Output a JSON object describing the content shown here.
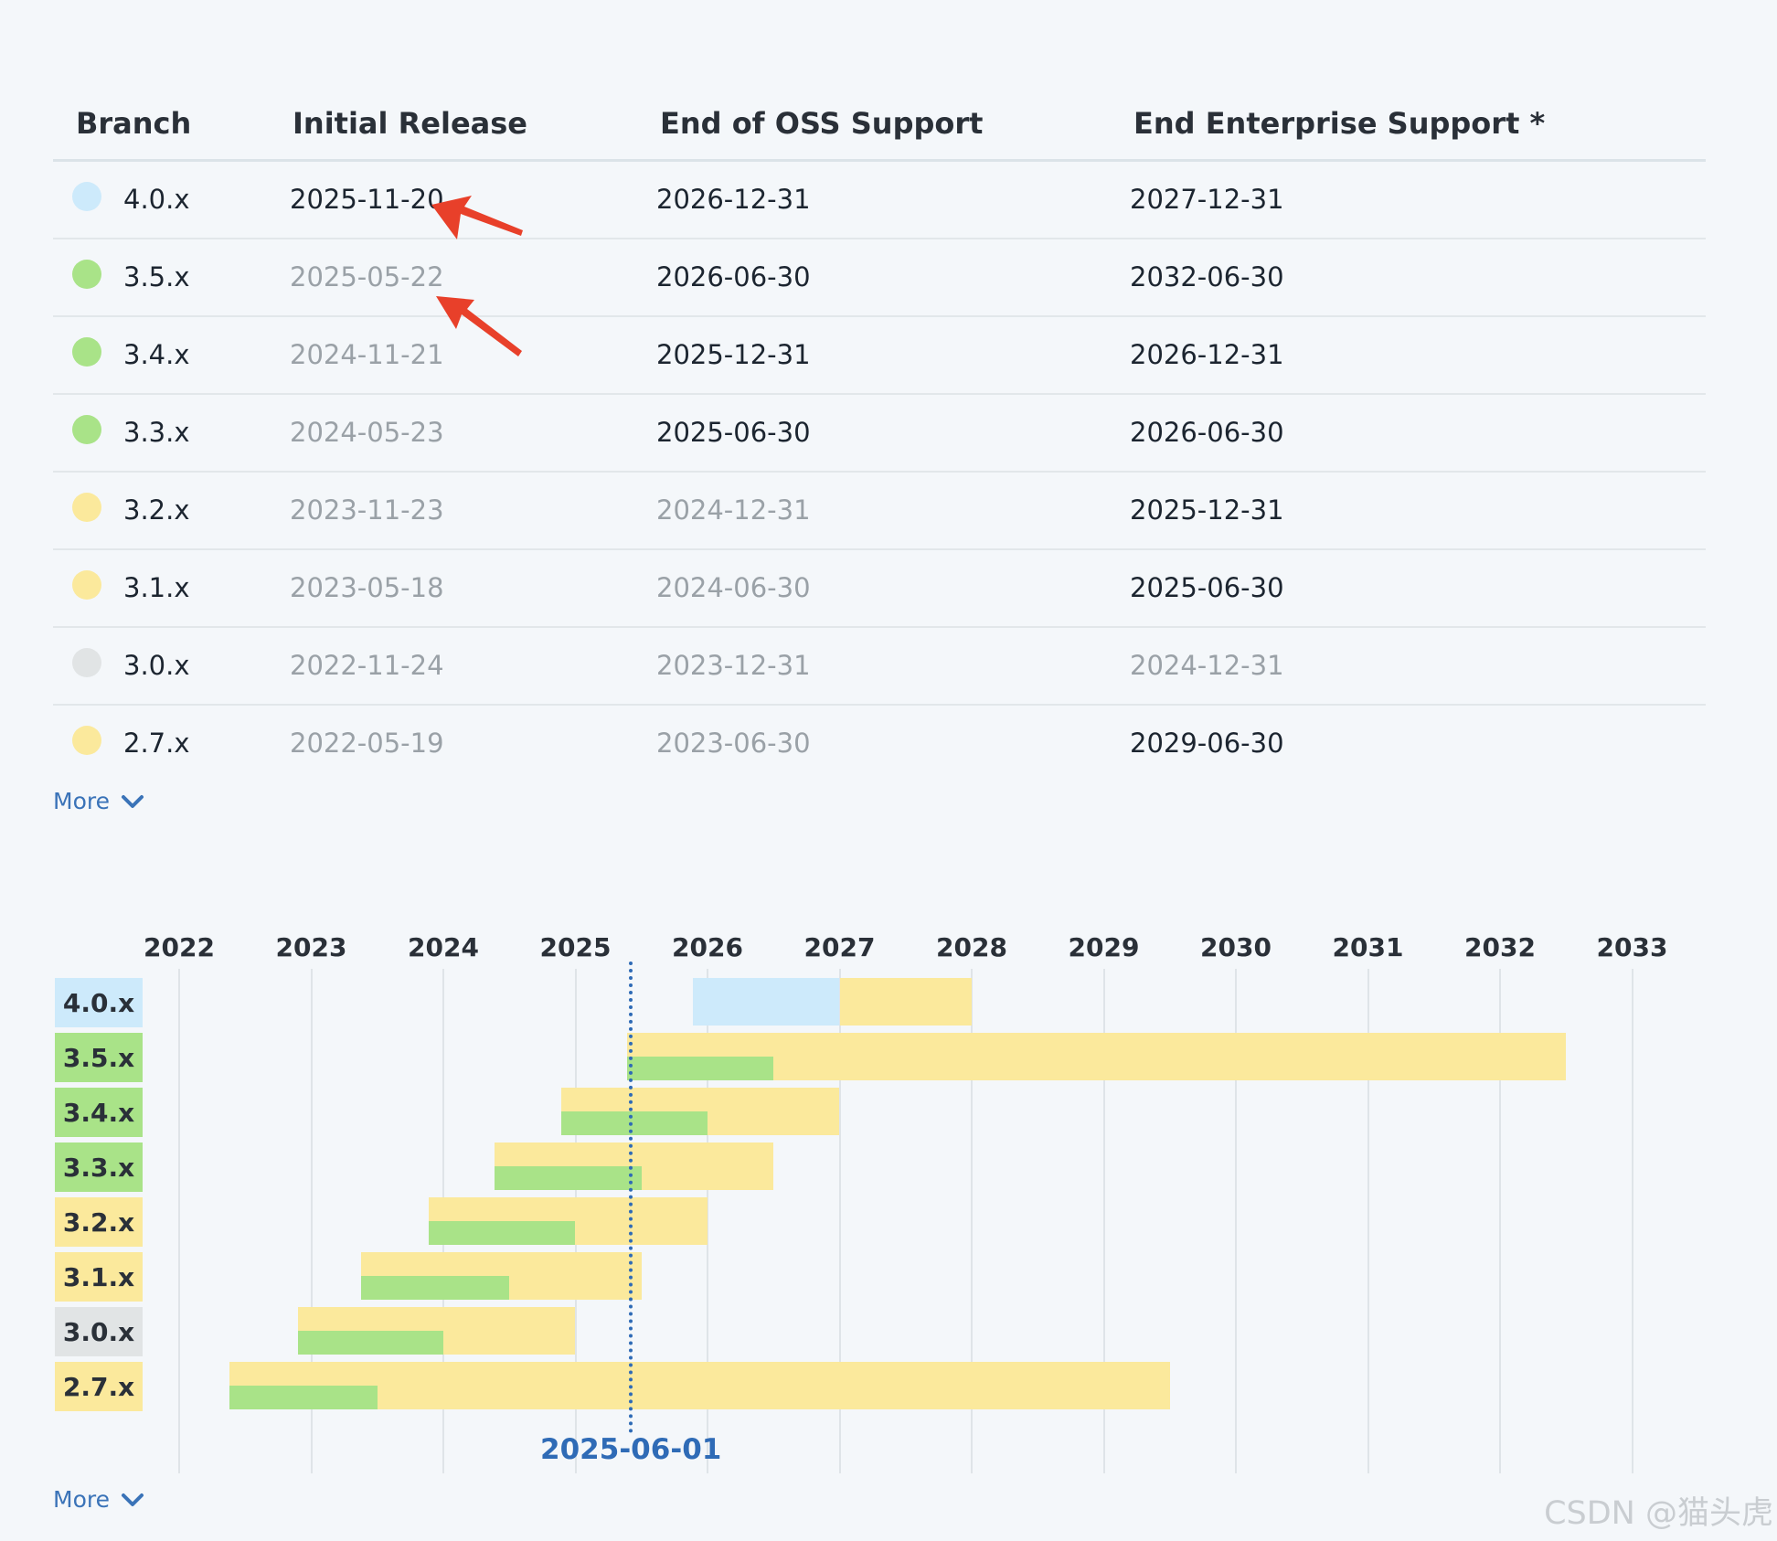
{
  "colors": {
    "blue": "#cdeafb",
    "green": "#a9e388",
    "yellow": "#fbe99c",
    "gray": "#e1e4e5",
    "accent": "#2f6bb6",
    "annotation_arrow": "#e8402a"
  },
  "table": {
    "headers": {
      "branch": "Branch",
      "initial": "Initial Release",
      "oss": "End of OSS Support",
      "enterprise": "End Enterprise Support *"
    },
    "rows": [
      {
        "branch": "4.0.x",
        "status": "blue",
        "initial": "2025-11-20",
        "oss": "2026-12-31",
        "enterprise": "2027-12-31",
        "initial_dim": false,
        "oss_dim": false,
        "ent_dim": false
      },
      {
        "branch": "3.5.x",
        "status": "green",
        "initial": "2025-05-22",
        "oss": "2026-06-30",
        "enterprise": "2032-06-30",
        "initial_dim": true,
        "oss_dim": false,
        "ent_dim": false
      },
      {
        "branch": "3.4.x",
        "status": "green",
        "initial": "2024-11-21",
        "oss": "2025-12-31",
        "enterprise": "2026-12-31",
        "initial_dim": true,
        "oss_dim": false,
        "ent_dim": false
      },
      {
        "branch": "3.3.x",
        "status": "green",
        "initial": "2024-05-23",
        "oss": "2025-06-30",
        "enterprise": "2026-06-30",
        "initial_dim": true,
        "oss_dim": false,
        "ent_dim": false
      },
      {
        "branch": "3.2.x",
        "status": "yellow",
        "initial": "2023-11-23",
        "oss": "2024-12-31",
        "enterprise": "2025-12-31",
        "initial_dim": true,
        "oss_dim": true,
        "ent_dim": false
      },
      {
        "branch": "3.1.x",
        "status": "yellow",
        "initial": "2023-05-18",
        "oss": "2024-06-30",
        "enterprise": "2025-06-30",
        "initial_dim": true,
        "oss_dim": true,
        "ent_dim": false
      },
      {
        "branch": "3.0.x",
        "status": "gray",
        "initial": "2022-11-24",
        "oss": "2023-12-31",
        "enterprise": "2024-12-31",
        "initial_dim": true,
        "oss_dim": true,
        "ent_dim": true
      },
      {
        "branch": "2.7.x",
        "status": "yellow",
        "initial": "2022-05-19",
        "oss": "2023-06-30",
        "enterprise": "2029-06-30",
        "initial_dim": true,
        "oss_dim": true,
        "ent_dim": false
      }
    ],
    "more_label": "More"
  },
  "timeline": {
    "years": [
      "2022",
      "2023",
      "2024",
      "2025",
      "2026",
      "2027",
      "2028",
      "2029",
      "2030",
      "2031",
      "2032",
      "2033"
    ],
    "today": 2025.42,
    "today_label": "2025-06-01",
    "more_label": "More",
    "bars": [
      {
        "branch": "4.0.x",
        "status": "blue",
        "oss_start": 2025.89,
        "oss_end": 2027.0,
        "ent_start": 2027.0,
        "ent_end": 2028.0,
        "mode": "inline"
      },
      {
        "branch": "3.5.x",
        "status": "green",
        "oss_start": 2025.39,
        "oss_end": 2026.5,
        "ent_start": 2025.39,
        "ent_end": 2032.5,
        "mode": "stacked"
      },
      {
        "branch": "3.4.x",
        "status": "green",
        "oss_start": 2024.89,
        "oss_end": 2026.0,
        "ent_start": 2024.89,
        "ent_end": 2027.0,
        "mode": "stacked"
      },
      {
        "branch": "3.3.x",
        "status": "green",
        "oss_start": 2024.39,
        "oss_end": 2025.5,
        "ent_start": 2024.39,
        "ent_end": 2026.5,
        "mode": "stacked"
      },
      {
        "branch": "3.2.x",
        "status": "yellow",
        "oss_start": 2023.89,
        "oss_end": 2025.0,
        "ent_start": 2023.89,
        "ent_end": 2026.0,
        "mode": "stacked"
      },
      {
        "branch": "3.1.x",
        "status": "yellow",
        "oss_start": 2023.38,
        "oss_end": 2024.5,
        "ent_start": 2023.38,
        "ent_end": 2025.5,
        "mode": "stacked"
      },
      {
        "branch": "3.0.x",
        "status": "gray",
        "oss_start": 2022.9,
        "oss_end": 2024.0,
        "ent_start": 2022.9,
        "ent_end": 2025.0,
        "mode": "stacked"
      },
      {
        "branch": "2.7.x",
        "status": "yellow",
        "oss_start": 2022.38,
        "oss_end": 2023.5,
        "ent_start": 2022.38,
        "ent_end": 2029.5,
        "mode": "stacked"
      }
    ]
  },
  "watermark": "CSDN @猫头虎"
}
